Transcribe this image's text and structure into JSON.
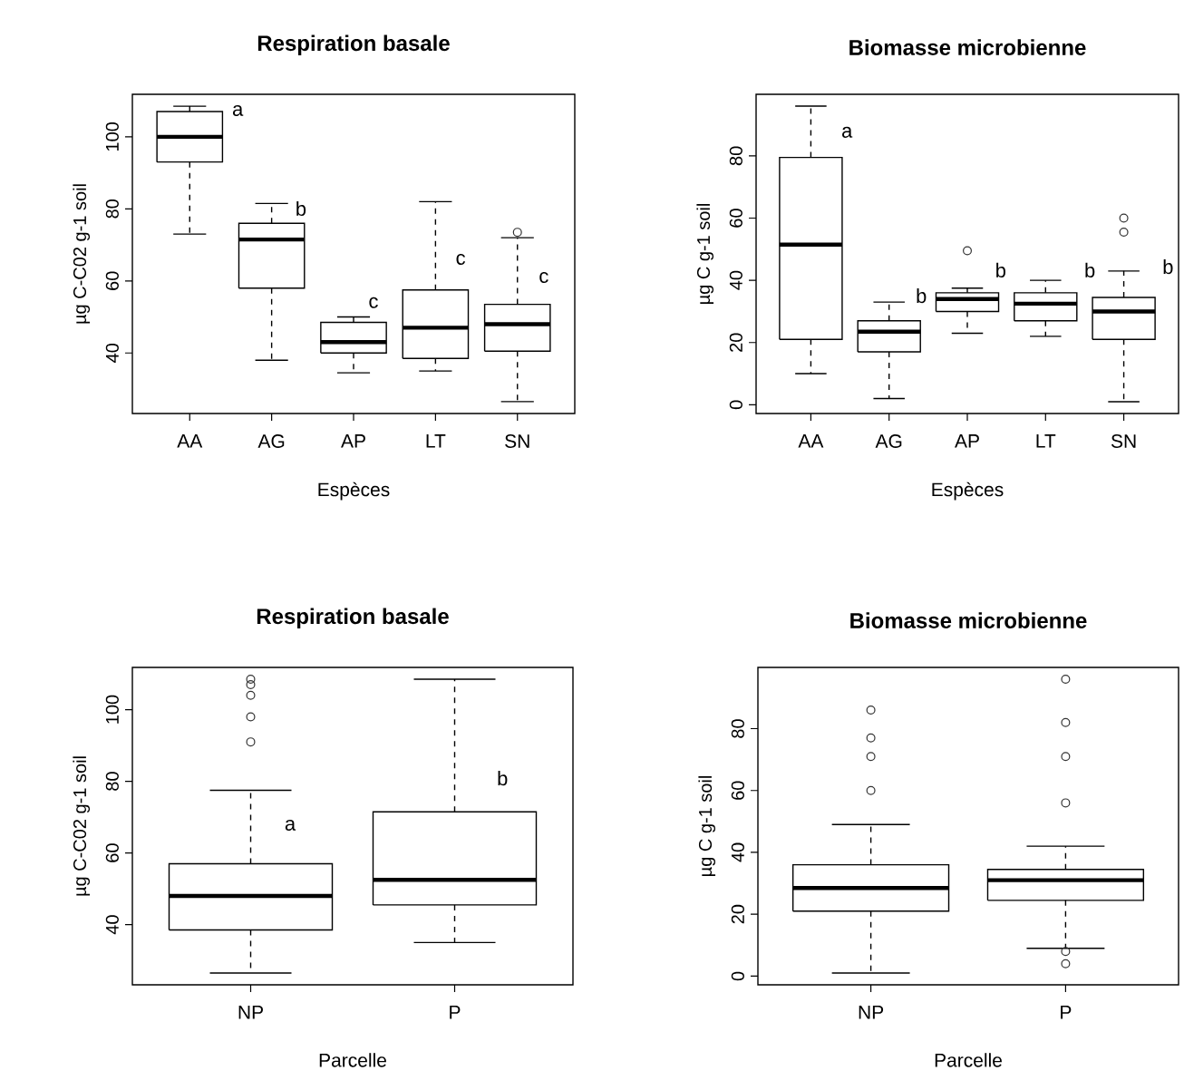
{
  "chart_data": [
    {
      "type": "box",
      "title": "Respiration basale",
      "xlabel": "Espèces",
      "ylabel": "µg C-C02 g-1 soil",
      "categories": [
        "AA",
        "AG",
        "AP",
        "LT",
        "SN"
      ],
      "boxes": [
        {
          "low": 73,
          "q1": 93,
          "median": 100,
          "q3": 107,
          "high": 108.5
        },
        {
          "low": 38,
          "q1": 58,
          "median": 71.5,
          "q3": 76,
          "high": 81.5
        },
        {
          "low": 34.5,
          "q1": 40,
          "median": 43,
          "q3": 48.5,
          "high": 50
        },
        {
          "low": 35,
          "q1": 38.5,
          "median": 47,
          "q3": 57.5,
          "high": 82
        },
        {
          "low": 26.5,
          "q1": 40.5,
          "median": 48,
          "q3": 53.5,
          "high": 72,
          "outliers": [
            73.5
          ]
        }
      ],
      "ylim": [
        23.2,
        111.8
      ],
      "yticks": [
        40,
        60,
        80,
        100
      ],
      "annotations": [
        "a",
        "b",
        "c",
        "c",
        "c"
      ]
    },
    {
      "type": "box",
      "title": "Biomasse microbienne",
      "xlabel": "Espèces",
      "ylabel": "µg C g-1 soil",
      "categories": [
        "AA",
        "AG",
        "AP",
        "LT",
        "SN"
      ],
      "boxes": [
        {
          "low": 10,
          "q1": 21,
          "median": 51.5,
          "q3": 79.5,
          "high": 96
        },
        {
          "low": 2,
          "q1": 17,
          "median": 23.5,
          "q3": 27,
          "high": 33
        },
        {
          "low": 23,
          "q1": 30,
          "median": 34,
          "q3": 36,
          "high": 37.5,
          "outliers": [
            49.5
          ]
        },
        {
          "low": 22,
          "q1": 27,
          "median": 32.5,
          "q3": 36,
          "high": 40
        },
        {
          "low": 1,
          "q1": 21,
          "median": 30,
          "q3": 34.5,
          "high": 43,
          "outliers": [
            55.5,
            60
          ]
        }
      ],
      "ylim": [
        -2.8,
        99.8
      ],
      "yticks": [
        0,
        20,
        40,
        60,
        80
      ],
      "annotations": [
        "a",
        "b",
        "b",
        "b",
        "b"
      ]
    },
    {
      "type": "box",
      "title": "Respiration basale",
      "xlabel": "Parcelle",
      "ylabel": "µg C-C02 g-1 soil",
      "categories": [
        "NP",
        "P"
      ],
      "boxes": [
        {
          "low": 26.5,
          "q1": 38.5,
          "median": 48,
          "q3": 57,
          "high": 77.5,
          "outliers": [
            91,
            98,
            104,
            107,
            108.5
          ]
        },
        {
          "low": 35,
          "q1": 45.5,
          "median": 52.5,
          "q3": 71.5,
          "high": 108.5
        }
      ],
      "ylim": [
        23.2,
        111.8
      ],
      "yticks": [
        40,
        60,
        80,
        100
      ],
      "annotations": [
        "a",
        "b"
      ]
    },
    {
      "type": "box",
      "title": "Biomasse microbienne",
      "xlabel": "Parcelle",
      "ylabel": "µg C g-1 soil",
      "categories": [
        "NP",
        "P"
      ],
      "boxes": [
        {
          "low": 1,
          "q1": 21,
          "median": 28.5,
          "q3": 36,
          "high": 49,
          "outliers": [
            60,
            71,
            77,
            86
          ]
        },
        {
          "low": 9,
          "q1": 24.5,
          "median": 31,
          "q3": 34.5,
          "high": 42,
          "outliers": [
            4,
            8,
            56,
            71,
            82,
            96
          ]
        }
      ],
      "ylim": [
        -2.8,
        99.8
      ],
      "yticks": [
        0,
        20,
        40,
        60,
        80
      ]
    }
  ]
}
